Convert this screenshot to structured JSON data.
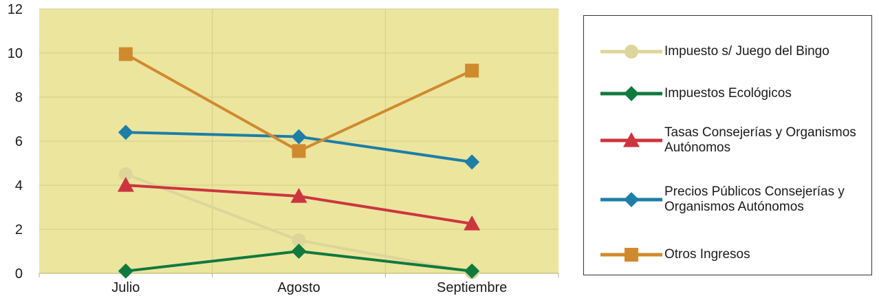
{
  "chart_data": {
    "type": "line",
    "categories": [
      "Julio",
      "Agosto",
      "Septiembre"
    ],
    "ylim": [
      0,
      12
    ],
    "yticks": [
      0,
      2,
      4,
      6,
      8,
      10,
      12
    ],
    "grid": true,
    "legend_position": "right",
    "plot_background": "#ece59e",
    "grid_color": "#d3cd8a",
    "series": [
      {
        "name": "Impuesto s/ Juego del Bingo",
        "values": [
          4.5,
          1.5,
          0.05
        ],
        "color": "#ddd59a",
        "marker": "circle"
      },
      {
        "name": "Impuestos Ecológicos",
        "values": [
          0.1,
          1.0,
          0.1
        ],
        "color": "#0f7a3e",
        "marker": "diamond"
      },
      {
        "name": "Tasas Consejerías y Organismos Autónomos",
        "values": [
          4.0,
          3.5,
          2.25
        ],
        "color": "#cc3540",
        "marker": "triangle"
      },
      {
        "name": "Precios Públicos Consejerías y Organismos Autónomos",
        "values": [
          6.4,
          6.2,
          5.05
        ],
        "color": "#1d7ea8",
        "marker": "diamond"
      },
      {
        "name": "Otros Ingresos",
        "values": [
          9.95,
          5.55,
          9.2
        ],
        "color": "#d08a2e",
        "marker": "square"
      }
    ]
  }
}
